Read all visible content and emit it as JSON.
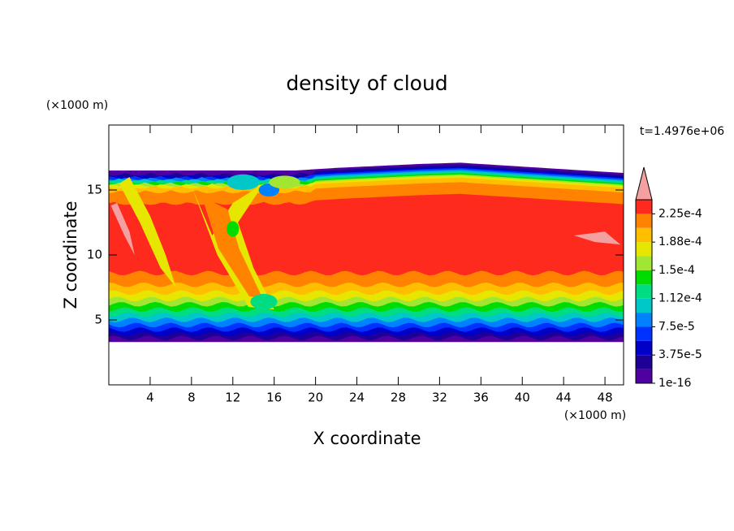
{
  "chart_data": {
    "type": "contour",
    "title": "density of cloud",
    "x_label": "X coordinate",
    "y_label": "Z coordinate",
    "x_unit": "(×1000 m)",
    "y_unit": "(×1000 m)",
    "time_label": "t=1.4976e+06",
    "xlim": [
      0,
      49.8
    ],
    "ylim": [
      0,
      20
    ],
    "xticks": [
      4,
      8,
      12,
      16,
      20,
      24,
      28,
      32,
      36,
      40,
      44,
      48
    ],
    "yticks": [
      5,
      10,
      15
    ],
    "levels": [
      1e-16,
      1.875e-05,
      3.75e-05,
      5.625e-05,
      7.5e-05,
      9.375e-05,
      0.0001125,
      0.00013125,
      0.00015,
      0.00016875,
      0.0001875,
      0.00020625,
      0.000225,
      0.00024375
    ],
    "colors": [
      "#5000a0",
      "#1e0096",
      "#0000c8",
      "#0032ff",
      "#0082ff",
      "#00c8c8",
      "#00dc82",
      "#00dc00",
      "#a0e632",
      "#e6e600",
      "#ffbe00",
      "#ff8200",
      "#ff2a1e",
      "#f5a0a0"
    ],
    "colorbar_ticks": [
      {
        "value": 1e-16,
        "label": "1e-16"
      },
      {
        "value": 3.75e-05,
        "label": "3.75e-5"
      },
      {
        "value": 7.5e-05,
        "label": "7.5e-5"
      },
      {
        "value": 0.0001125,
        "label": "1.12e-4"
      },
      {
        "value": 0.00015,
        "label": "1.5e-4"
      },
      {
        "value": 0.0001875,
        "label": "1.88e-4"
      },
      {
        "value": 0.000225,
        "label": "2.25e-4"
      }
    ]
  }
}
